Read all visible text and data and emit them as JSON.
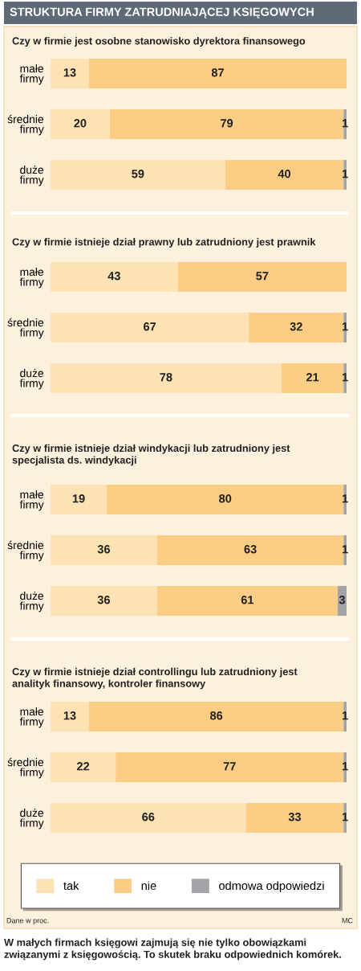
{
  "chart_data": [
    {
      "type": "bar",
      "orientation": "horizontal",
      "stacked": true,
      "title": "STRUKTURA FIRMY ZATRUDNIAJĄCEJ KSIĘGOWYCH",
      "subtitle": "Czy w firmie jest osobne stanowisko dyrektora finansowego",
      "categories": [
        "małe\nfirmy",
        "średnie\nfirmy",
        "duże\nfirmy"
      ],
      "xlim": [
        0,
        100
      ],
      "tick_labels": "y",
      "data_labels": true,
      "series": [
        {
          "color": "#fde2b4",
          "values": [
            13,
            20,
            59
          ]
        },
        {
          "color": "#fccd85",
          "values": [
            87,
            79,
            40
          ]
        },
        {
          "color": "#a3a4a8",
          "values": [
            null,
            1,
            1
          ]
        }
      ]
    },
    {
      "type": "bar",
      "orientation": "horizontal",
      "stacked": true,
      "title": "Czy w firmie istnieje dział prawny lub zatrudniony jest prawnik",
      "categories": [
        "małe\nfirmy",
        "średnie\nfirmy",
        "duże\nfirmy"
      ],
      "xlim": [
        0,
        100
      ],
      "tick_labels": "y",
      "data_labels": true,
      "series": [
        {
          "color": "#fde2b4",
          "values": [
            43,
            67,
            78
          ]
        },
        {
          "color": "#fccd85",
          "values": [
            57,
            32,
            21
          ]
        },
        {
          "color": "#a3a4a8",
          "values": [
            null,
            1,
            1
          ]
        }
      ]
    },
    {
      "type": "bar",
      "orientation": "horizontal",
      "stacked": true,
      "title": "Czy w firmie istnieje dział windykacji lub zatrudniony jest\nspecjalista ds. windykacji",
      "categories": [
        "małe\nfirmy",
        "średnie\nfirmy",
        "duże\nfirmy"
      ],
      "xlim": [
        0,
        100
      ],
      "tick_labels": "y",
      "data_labels": true,
      "series": [
        {
          "color": "#fde2b4",
          "values": [
            19,
            36,
            36
          ]
        },
        {
          "color": "#fccd85",
          "values": [
            80,
            63,
            61
          ]
        },
        {
          "color": "#a3a4a8",
          "values": [
            1,
            1,
            3
          ]
        }
      ]
    },
    {
      "type": "bar",
      "orientation": "horizontal",
      "stacked": true,
      "title": "Czy w firmie istnieje dział controllingu lub zatrudniony jest\nanalityk finansowy, kontroler finansowy",
      "categories": [
        "małe\nfirmy",
        "średnie\nfirmy",
        "duże\nfirmy"
      ],
      "xlim": [
        0,
        100
      ],
      "tick_labels": "y",
      "data_labels": true,
      "legend": "bottom",
      "series": [
        {
          "name": "tak",
          "color": "#fde2b4",
          "values": [
            13,
            22,
            66
          ]
        },
        {
          "name": "nie",
          "color": "#fccd85",
          "values": [
            86,
            77,
            33
          ]
        },
        {
          "name": "odmowa odpowiedzi",
          "color": "#a3a4a8",
          "values": [
            1,
            1,
            1
          ]
        }
      ],
      "annotations": [
        "Dane w proc.",
        "MC",
        "W małych firmach księgowi zajmują się nie tylko obowiązkami\nzwiązanymi z księgowością. To skutek braku odpowiednich komórek."
      ]
    }
  ]
}
